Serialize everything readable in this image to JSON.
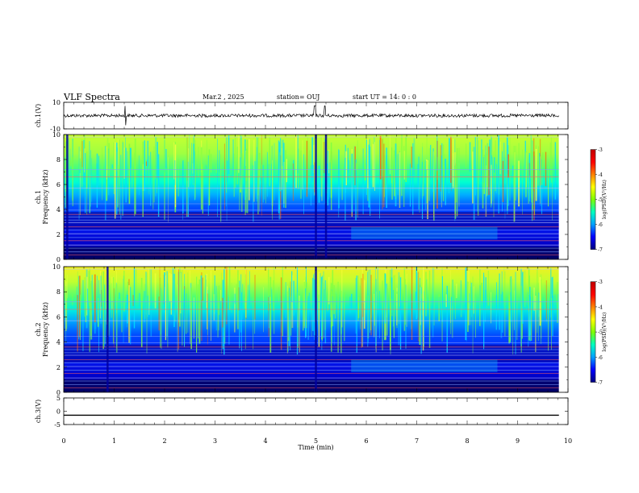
{
  "header": {
    "title": "VLF Spectra",
    "date": "Mar.2  , 2025",
    "station": "station= OUJ",
    "start_ut": "start  UT =   14: 0   : 0"
  },
  "chart_data": {
    "type": "heatmap",
    "xlabel": "Time  (min)",
    "xlim": [
      0,
      10
    ],
    "xticks": [
      "0",
      "1",
      "2",
      "3",
      "4",
      "5",
      "6",
      "7",
      "8",
      "9",
      "10"
    ],
    "panels": [
      {
        "id": "ch1-waveform",
        "type": "line",
        "ylabel": "ch.1(V)",
        "ylim": [
          -10,
          10
        ],
        "yticks": [
          "10",
          "-10"
        ],
        "baseline": 0,
        "spikes_min": [
          1.22,
          4.98,
          5.18
        ]
      },
      {
        "id": "ch1-spectrogram",
        "type": "heatmap",
        "ylabel_top": "ch.1",
        "ylabel": "Frequency  (kHz)",
        "ylim": [
          0,
          10
        ],
        "yticks": [
          "0",
          "2",
          "4",
          "6",
          "8",
          "10"
        ],
        "colorbar": {
          "label": "log(PSD)(V²/Hz)",
          "range": [
            -7,
            -3
          ],
          "ticks": [
            "-3",
            "-4",
            "-5",
            "-6",
            "-7"
          ],
          "colors": [
            "#000080",
            "#0000ff",
            "#00a0ff",
            "#00ffc0",
            "#7fff00",
            "#ffff00",
            "#ff8000",
            "#ff0000",
            "#c00000"
          ]
        },
        "bursts_min": [
          0.05,
          4.98,
          5.18
        ]
      },
      {
        "id": "ch2-spectrogram",
        "type": "heatmap",
        "ylabel_top": "ch.2",
        "ylabel": "Frequency  (kHz)",
        "ylim": [
          0,
          10
        ],
        "yticks": [
          "0",
          "2",
          "4",
          "6",
          "8",
          "10"
        ],
        "colorbar": {
          "label": "log(PSD)(V²/Hz)",
          "range": [
            -7,
            -3
          ],
          "ticks": [
            "-3",
            "-4",
            "-5",
            "-6",
            "-7"
          ],
          "colors": [
            "#000080",
            "#0000ff",
            "#00a0ff",
            "#00ffc0",
            "#7fff00",
            "#ffff00",
            "#ff8000",
            "#ff0000",
            "#c00000"
          ]
        },
        "bursts_min": [
          0.85,
          4.98
        ]
      },
      {
        "id": "ch3-waveform",
        "type": "line",
        "ylabel": "ch.3(V)",
        "ylim": [
          -5,
          5
        ],
        "yticks": [
          "5",
          "0",
          "-5"
        ],
        "baseline": -1.5
      }
    ]
  }
}
